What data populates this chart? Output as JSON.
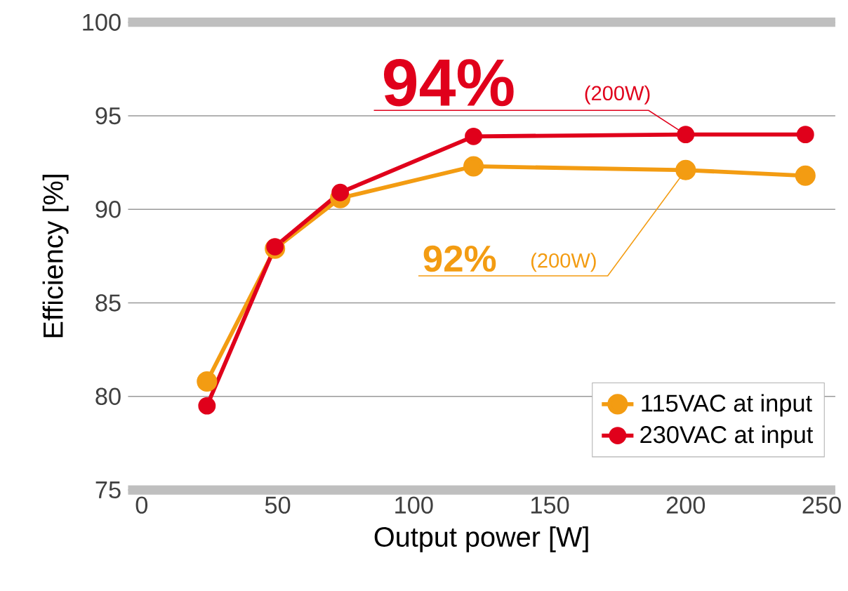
{
  "chart_data": {
    "type": "line",
    "xlabel": "Output power [W]",
    "ylabel": "Efficiency [%]",
    "xlim": [
      -5,
      255
    ],
    "xticks": [
      0,
      50,
      100,
      150,
      200,
      250
    ],
    "ylim": [
      75,
      100
    ],
    "yticks": [
      75,
      80,
      85,
      90,
      95,
      100
    ],
    "grid": "y",
    "legend": "bottom right",
    "marker": "circle",
    "line_style": "solid",
    "series": [
      {
        "name": "115VAC at input",
        "color": "#f39c12",
        "x": [
          24,
          49,
          73,
          122,
          200,
          244
        ],
        "values": [
          80.8,
          87.9,
          90.6,
          92.3,
          92.1,
          91.8
        ]
      },
      {
        "name": "230VAC at input",
        "color": "#e0001b",
        "x": [
          24,
          49,
          73,
          122,
          200,
          244
        ],
        "values": [
          79.5,
          88.0,
          90.9,
          93.9,
          94.0,
          94.0
        ]
      }
    ],
    "annotations": [
      "94%",
      "(200W)",
      "92%",
      "(200W)"
    ]
  }
}
